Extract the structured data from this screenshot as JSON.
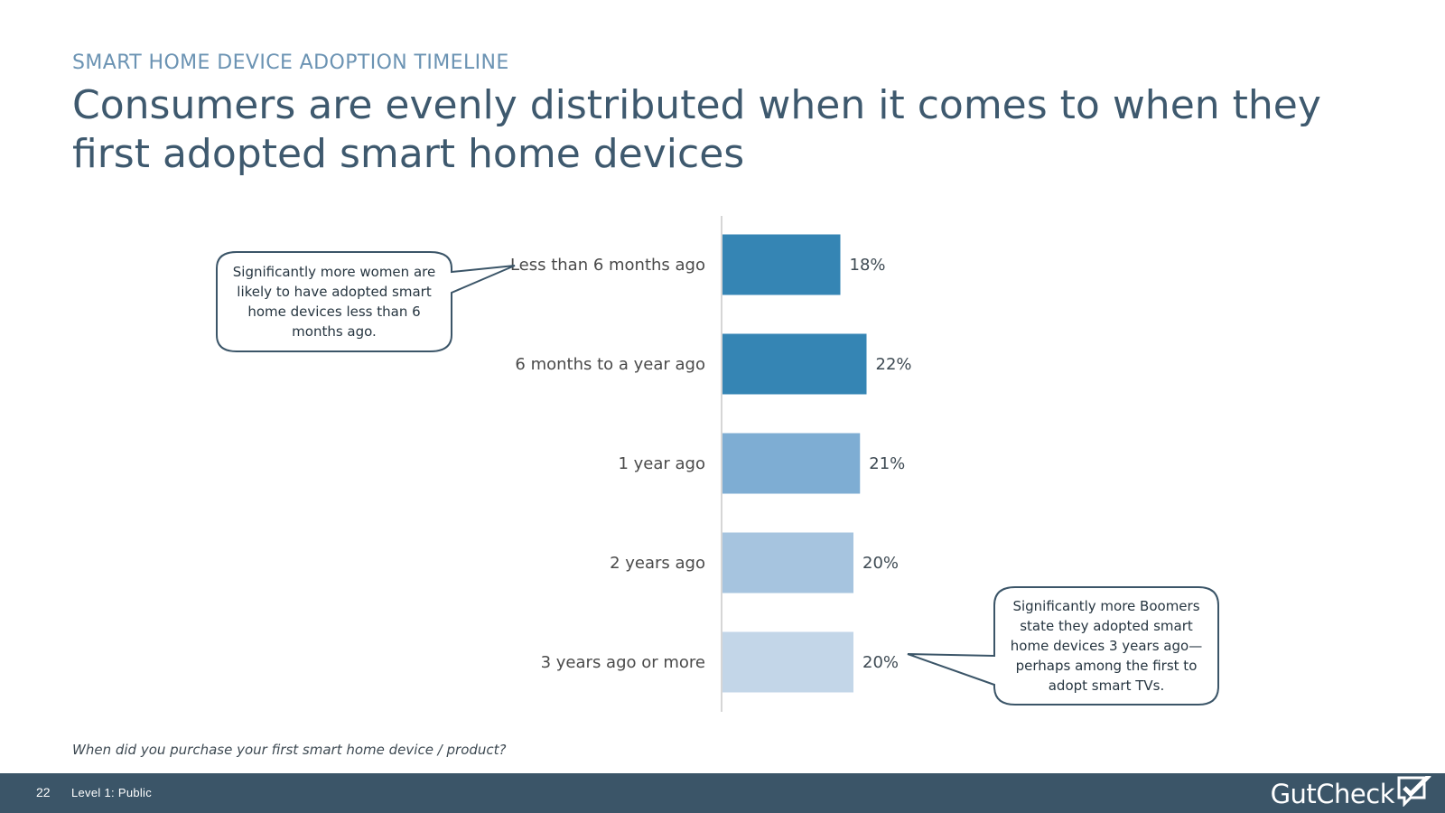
{
  "header": {
    "kicker": "SMART HOME DEVICE ADOPTION TIMELINE",
    "headline": "Consumers are evenly distributed when it comes to when they first adopted smart home devices"
  },
  "chart_data": {
    "type": "bar",
    "orientation": "horizontal",
    "categories": [
      "Less than 6 months ago",
      "6 months to a year ago",
      "1 year ago",
      "2 years ago",
      "3 years ago or more"
    ],
    "values": [
      18,
      22,
      21,
      20,
      20
    ],
    "value_labels": [
      "18%",
      "22%",
      "21%",
      "20%",
      "20%"
    ],
    "bar_colors": [
      "#3585b4",
      "#3585b4",
      "#7eadd3",
      "#a6c4df",
      "#c3d6e8"
    ],
    "xlim": [
      0,
      100
    ],
    "grid": false
  },
  "callouts": {
    "women": "Significantly more women are likely to have adopted smart home devices less than 6 months ago.",
    "boomers": "Significantly more Boomers state they adopted smart home devices 3 years ago—perhaps among the first to adopt smart TVs."
  },
  "question": "When did you purchase your first smart home device / product?",
  "footer": {
    "page_number": "22",
    "classification": "Level 1: Public",
    "brand": "GutCheck"
  },
  "colors": {
    "footer_bg": "#3b5568",
    "headline": "#3e596e",
    "kicker": "#6b93b3",
    "callout_border": "#3b5568"
  }
}
